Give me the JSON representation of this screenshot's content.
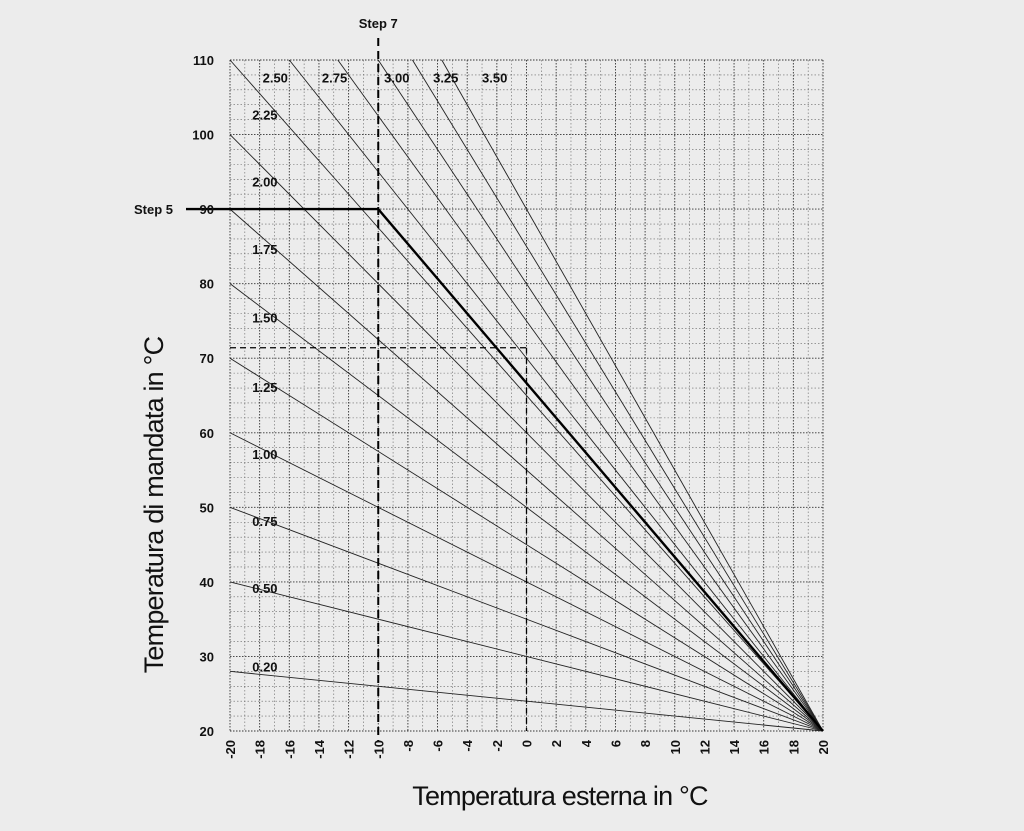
{
  "chart_data": {
    "type": "line",
    "xlabel": "Temperatura esterna in °C",
    "ylabel": "Temperatura di mandata in °C",
    "xlim": [
      -20,
      20
    ],
    "ylim": [
      20,
      110
    ],
    "x_ticks": [
      -20,
      -18,
      -16,
      -14,
      -12,
      -10,
      -8,
      -6,
      -4,
      -2,
      0,
      2,
      4,
      6,
      8,
      10,
      12,
      14,
      16,
      18,
      20
    ],
    "y_ticks": [
      20,
      30,
      40,
      50,
      60,
      70,
      80,
      90,
      100,
      110
    ],
    "x_tick_labels": [
      "-20",
      "-18",
      "-16",
      "-14",
      "-12",
      "-10",
      "-8",
      "-6",
      "-4",
      "-2",
      "0",
      "2",
      "4",
      "6",
      "8",
      "10",
      "12",
      "14",
      "16",
      "18",
      "20"
    ],
    "y_tick_labels": [
      "20",
      "30",
      "40",
      "50",
      "60",
      "70",
      "80",
      "90",
      "100",
      "110"
    ],
    "grid": true,
    "x_minor_step": 1,
    "y_minor_step": 2,
    "curves": [
      {
        "label": "0.20",
        "slope": 0.2,
        "label_at": [
          -18.5,
          28
        ]
      },
      {
        "label": "0.50",
        "slope": 0.5,
        "label_at": [
          -18.5,
          38.5
        ]
      },
      {
        "label": "0.75",
        "slope": 0.75,
        "label_at": [
          -18.5,
          47.5
        ]
      },
      {
        "label": "1.00",
        "slope": 1.0,
        "label_at": [
          -18.5,
          56.5
        ]
      },
      {
        "label": "1.25",
        "slope": 1.25,
        "label_at": [
          -18.5,
          65.5
        ]
      },
      {
        "label": "1.50",
        "slope": 1.5,
        "label_at": [
          -18.5,
          74.8
        ]
      },
      {
        "label": "1.75",
        "slope": 1.75,
        "label_at": [
          -18.5,
          84
        ]
      },
      {
        "label": "2.00",
        "slope": 2.0,
        "label_at": [
          -18.5,
          93
        ]
      },
      {
        "label": "2.25",
        "slope": 2.25,
        "label_at": [
          -18.5,
          102
        ]
      },
      {
        "label": "2.50",
        "slope": 2.5,
        "label_at": [
          -17.8,
          107
        ]
      },
      {
        "label": "2.75",
        "slope": 2.75,
        "label_at": [
          -13.8,
          107
        ]
      },
      {
        "label": "3.00",
        "slope": 3.0,
        "label_at": [
          -9.6,
          107
        ]
      },
      {
        "label": "3.25",
        "slope": 3.25,
        "label_at": [
          -6.3,
          107
        ]
      },
      {
        "label": "3.50",
        "slope": 3.5,
        "label_at": [
          -3.0,
          107
        ]
      }
    ],
    "pivot": [
      20,
      20
    ],
    "selected_curve": {
      "points": [
        [
          -20,
          90
        ],
        [
          -10,
          90
        ],
        [
          20,
          20
        ]
      ]
    },
    "annotations": [
      {
        "label": "Step 5",
        "value": 90,
        "axis": "y"
      },
      {
        "label": "Step 7",
        "value": -10,
        "axis": "x"
      }
    ],
    "reference_point": [
      0,
      71.4
    ]
  }
}
